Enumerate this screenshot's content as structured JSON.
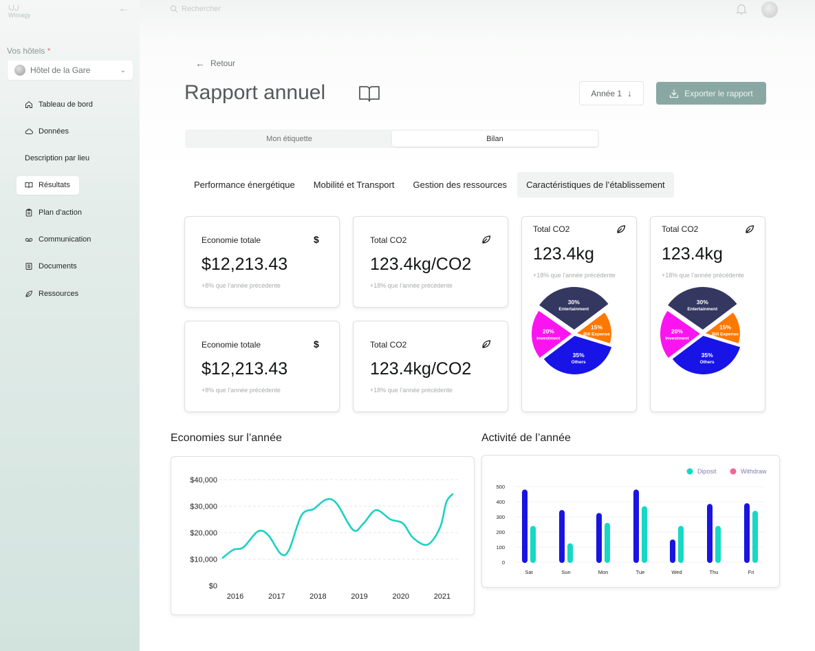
{
  "sidebar": {
    "logo_line1": "ﻝﻝﺍ",
    "logo_line2": "Wimagy",
    "hotels_label": "Vos hôtels",
    "required_mark": "*",
    "hotel_selected": "Hôtel de la Gare",
    "items": [
      {
        "label": "Tableau de bord",
        "icon": "home-icon"
      },
      {
        "label": "Données",
        "icon": "cloud-icon"
      },
      {
        "label": "Description par lieu",
        "icon": ""
      },
      {
        "label": "Résultats",
        "icon": "book-icon",
        "active": true
      },
      {
        "label": "Plan d’action",
        "icon": "clipboard-icon"
      },
      {
        "label": "Communication",
        "icon": "voicemail-icon"
      },
      {
        "label": "Documents",
        "icon": "document-icon"
      },
      {
        "label": "Ressources",
        "icon": "leaf-icon"
      }
    ]
  },
  "topbar": {
    "search_placeholder": "Rechercher"
  },
  "header": {
    "back_label": "Retour",
    "title": "Rapport annuel",
    "year_label": "Année 1",
    "export_label": "Exporter le rapport"
  },
  "segments": [
    {
      "label": "Mon étiquette",
      "active": false
    },
    {
      "label": "Bilan",
      "active": true
    }
  ],
  "tabs": [
    {
      "label": "Performance énergétique",
      "active": false
    },
    {
      "label": "Mobilité et Transport",
      "active": false
    },
    {
      "label": "Gestion des ressources",
      "active": false
    },
    {
      "label": "Caractéristiques de l’établissement",
      "active": true
    }
  ],
  "cards": {
    "economy1": {
      "title": "Economie totale",
      "value": "$12,213.43",
      "sub": "+8% que l’année précédente",
      "icon": "dollar-icon",
      "icon_glyph": "$"
    },
    "co2_1": {
      "title": "Total CO2",
      "value": "123.4kg/CO2",
      "sub": "+18% que l’année précédente",
      "icon": "leaf-icon"
    },
    "economy2": {
      "title": "Economie totale",
      "value": "$12,213.43",
      "sub": "+8% que l’année précédente",
      "icon": "dollar-icon",
      "icon_glyph": "$"
    },
    "co2_2": {
      "title": "Total CO2",
      "value": "123.4kg/CO2",
      "sub": "+18% que l’année précédente",
      "icon": "leaf-icon"
    },
    "pie1": {
      "title": "Total CO2",
      "value": "123.4kg",
      "sub": "+18% que l’année précédente",
      "icon": "leaf-icon"
    },
    "pie2": {
      "title": "Total CO2",
      "value": "123.4kg",
      "sub": "+18% que l’année précédente",
      "icon": "leaf-icon"
    }
  },
  "sections": {
    "savings_title": "Economies sur l’année",
    "activity_title": "Activité de l’année"
  },
  "chart_data": [
    {
      "type": "pie",
      "slices": [
        {
          "label": "Entertainment",
          "value": 30,
          "pct_label": "30%",
          "color": "#343760"
        },
        {
          "label": "Bill Expense",
          "value": 15,
          "pct_label": "15%",
          "color": "#fc7800"
        },
        {
          "label": "Others",
          "value": 35,
          "pct_label": "35%",
          "color": "#1814e8"
        },
        {
          "label": "Investment",
          "value": 20,
          "pct_label": "20%",
          "color": "#fb14f0"
        }
      ]
    },
    {
      "type": "pie",
      "slices": [
        {
          "label": "Entertainment",
          "value": 30,
          "pct_label": "30%",
          "color": "#343760"
        },
        {
          "label": "Bill Expense",
          "value": 15,
          "pct_label": "15%",
          "color": "#fc7800"
        },
        {
          "label": "Others",
          "value": 35,
          "pct_label": "35%",
          "color": "#1814e8"
        },
        {
          "label": "Investment",
          "value": 20,
          "pct_label": "20%",
          "color": "#fb14f0"
        }
      ]
    },
    {
      "type": "line",
      "title": "Economies sur l’année",
      "x_ticks": [
        "2016",
        "2017",
        "2018",
        "2019",
        "2020",
        "2021"
      ],
      "y_ticks": [
        "$0",
        "$10,000",
        "$20,000",
        "$30,000",
        "$40,000"
      ],
      "ylim": [
        0,
        40000
      ],
      "xlim": [
        2015.7,
        2021.4
      ],
      "color": "#1ad1c3",
      "points": [
        [
          2015.7,
          10500
        ],
        [
          2015.95,
          13500
        ],
        [
          2016.2,
          14500
        ],
        [
          2016.55,
          20500
        ],
        [
          2016.8,
          19000
        ],
        [
          2017.1,
          12000
        ],
        [
          2017.3,
          13500
        ],
        [
          2017.6,
          26500
        ],
        [
          2017.9,
          29000
        ],
        [
          2018.2,
          32500
        ],
        [
          2018.45,
          31000
        ],
        [
          2018.85,
          21000
        ],
        [
          2019.1,
          23500
        ],
        [
          2019.4,
          28500
        ],
        [
          2019.75,
          25000
        ],
        [
          2020.05,
          23500
        ],
        [
          2020.3,
          18000
        ],
        [
          2020.65,
          15500
        ],
        [
          2020.95,
          22000
        ],
        [
          2021.1,
          31500
        ],
        [
          2021.25,
          34500
        ]
      ]
    },
    {
      "type": "bar",
      "title": "Activité de l’année",
      "categories": [
        "Sat",
        "Sun",
        "Mon",
        "Tue",
        "Wed",
        "Thu",
        "Fri"
      ],
      "y_ticks": [
        "0",
        "100",
        "200",
        "300",
        "400",
        "500"
      ],
      "ylim": [
        0,
        500
      ],
      "series": [
        {
          "name": "Diposit",
          "color": "#1a14e0",
          "values": [
            480,
            345,
            325,
            480,
            150,
            385,
            390
          ]
        },
        {
          "name": "Withdraw",
          "color": "#16d8c5",
          "values": [
            240,
            125,
            260,
            370,
            240,
            240,
            340
          ]
        }
      ],
      "legend_colors": [
        "#16d8c5",
        "#f3659a"
      ],
      "legend_placement": "top-right"
    }
  ]
}
